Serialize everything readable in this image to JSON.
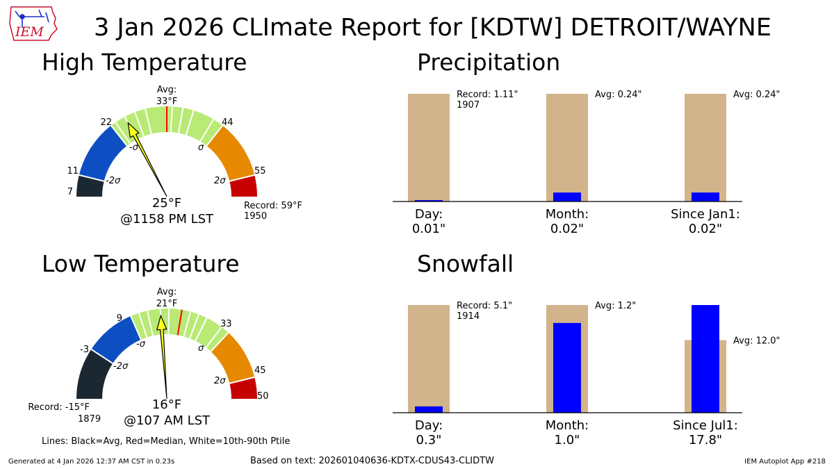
{
  "header": {
    "title": "3 Jan 2026 CLImate Report for [KDTW] DETROIT/WAYNE",
    "logo_text": "IEM"
  },
  "colors": {
    "band_below_2sigma": "#1c2831",
    "band_2sigma": "#0d4fc2",
    "band_1sigma": "#b9ea75",
    "band_above_1sigma": "#e68900",
    "band_above_2sigma": "#c60000",
    "median_line": "#ff0000",
    "percentile_lines": "#ffffff",
    "needle": "#ffff19",
    "bar_avg": "#d2b48c",
    "bar_obs": "#0000ff",
    "logo": "#c8102e",
    "logo_blue": "#1a2fc8"
  },
  "chart_data": [
    {
      "type": "gauge",
      "panel": "high",
      "title": "High Temperature",
      "range": [
        7,
        59
      ],
      "sigma_bounds": [
        11,
        22,
        44,
        55
      ],
      "tick_labels": [
        "7",
        "11",
        "22",
        "44",
        "55"
      ],
      "sigma_labels": [
        "-2σ",
        "-σ",
        "σ",
        "2σ"
      ],
      "average": 33,
      "avg_label": "Avg:",
      "avg_value": "33°F",
      "percentile_lines": [
        23,
        25,
        27,
        29,
        34,
        36,
        38,
        42
      ],
      "observed": 25,
      "observed_label": "25°F",
      "observed_time": "@1158 PM LST",
      "record_label": "Record: 59°F",
      "record_year": "1950"
    },
    {
      "type": "gauge",
      "panel": "low",
      "title": "Low Temperature",
      "range": [
        -15,
        50
      ],
      "sigma_bounds": [
        -3,
        9,
        33,
        45
      ],
      "tick_labels": [
        "-3",
        "9",
        "33",
        "45",
        "50"
      ],
      "sigma_labels": [
        "-2σ",
        "-σ",
        "σ",
        "2σ"
      ],
      "average": 21,
      "avg_label": "Avg:",
      "avg_value": "21°F",
      "percentile_lines": [
        11,
        13,
        16,
        18,
        23,
        25,
        27,
        31
      ],
      "observed": 16,
      "observed_label": "16°F",
      "observed_time": "@107 AM LST",
      "record_label": "Record: -15°F",
      "record_year": "1879"
    },
    {
      "type": "bar",
      "panel": "precip",
      "title": "Precipitation",
      "categories": [
        "Day:",
        "Month:",
        "Since Jan1:"
      ],
      "observed_labels": [
        "0.01\"",
        "0.02\"",
        "0.02\""
      ],
      "series": [
        {
          "name": "Reference",
          "values": [
            1.11,
            0.24,
            0.24
          ]
        },
        {
          "name": "Observed",
          "values": [
            0.01,
            0.02,
            0.02
          ]
        }
      ],
      "annotations": [
        "Record: 1.11\"",
        "Avg: 0.24\"",
        "Avg: 0.24\""
      ],
      "annotation_years": [
        "1907",
        "",
        ""
      ]
    },
    {
      "type": "bar",
      "panel": "snow",
      "title": "Snowfall",
      "categories": [
        "Day:",
        "Month:",
        "Since Jul1:"
      ],
      "observed_labels": [
        "0.3\"",
        "1.0\"",
        "17.8\""
      ],
      "series": [
        {
          "name": "Reference",
          "values": [
            5.1,
            1.2,
            12.0
          ]
        },
        {
          "name": "Observed",
          "values": [
            0.3,
            1.0,
            17.8
          ]
        }
      ],
      "annotations": [
        "Record: 5.1\"",
        "Avg: 1.2\"",
        "Avg: 12.0\""
      ],
      "annotation_years": [
        "1914",
        "",
        ""
      ]
    }
  ],
  "footer": {
    "legend_text": "Lines: Black=Avg, Red=Median, White=10th-90th Ptile",
    "generated": "Generated at 4 Jan 2026 12:37 AM CST in 0.23s",
    "source": "Based on text: 202601040636-KDTX-CDUS43-CLIDTW",
    "app": "IEM Autoplot App #218"
  }
}
